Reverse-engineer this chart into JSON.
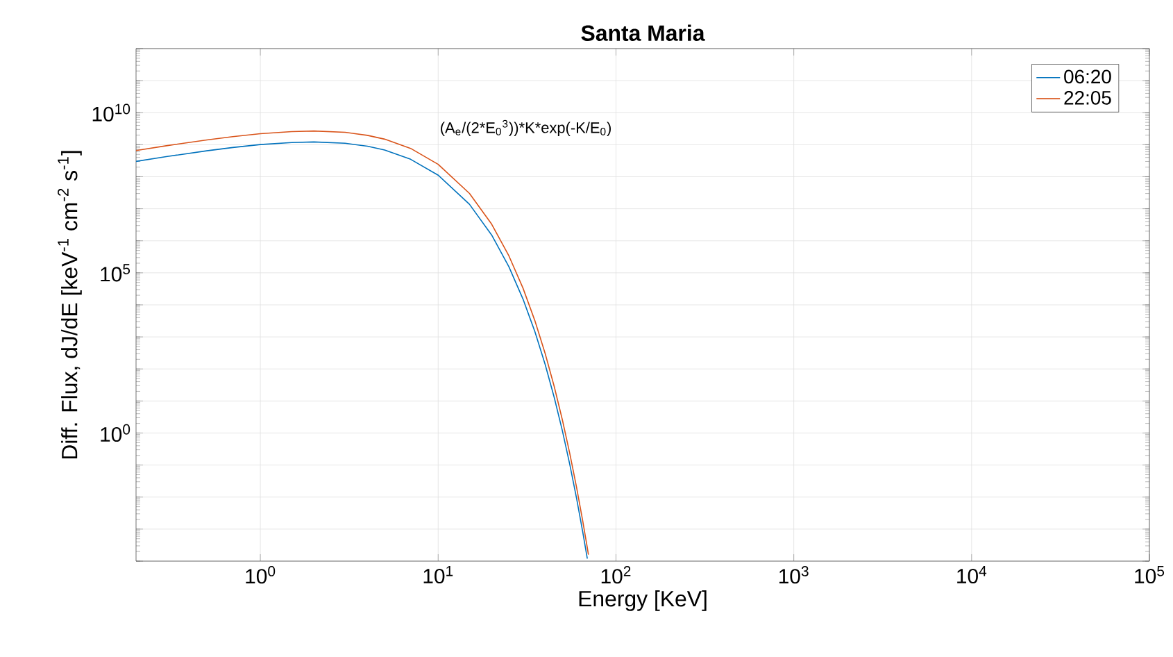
{
  "chart_data": {
    "type": "line",
    "title": "Santa Maria",
    "xlabel": "Energy [KeV]",
    "ylabel": "Diff. Flux, dJ/dE [keV$^{-1}$ cm$^{-2}$ s$^{-1}$]",
    "annotations": [
      "(A$_{e}$/(2*E$_{0}$$^{3}$))*K*exp(-K/E$_{0}$)"
    ],
    "log": "xy",
    "xlim": [
      0.2,
      100000
    ],
    "ylim": [
      0.0001,
      1000000000000
    ],
    "xticks": [
      {
        "value": 1,
        "label": "10$^{0}$"
      },
      {
        "value": 10,
        "label": "10$^{1}$"
      },
      {
        "value": 100,
        "label": "10$^{2}$"
      },
      {
        "value": 1000,
        "label": "10$^{3}$"
      },
      {
        "value": 10000,
        "label": "10$^{4}$"
      },
      {
        "value": 100000,
        "label": "10$^{5}$"
      }
    ],
    "yticks": [
      {
        "value": 0.0001,
        "label": null
      },
      {
        "value": 0.001,
        "label": null
      },
      {
        "value": 0.01,
        "label": null
      },
      {
        "value": 0.1,
        "label": null
      },
      {
        "value": 1,
        "label": "10$^{0}$"
      },
      {
        "value": 10,
        "label": null
      },
      {
        "value": 100,
        "label": null
      },
      {
        "value": 1000,
        "label": null
      },
      {
        "value": 10000,
        "label": null
      },
      {
        "value": 100000,
        "label": "10$^{5}$"
      },
      {
        "value": 1000000,
        "label": null
      },
      {
        "value": 10000000,
        "label": null
      },
      {
        "value": 100000000,
        "label": null
      },
      {
        "value": 1000000000,
        "label": null
      },
      {
        "value": 10000000000,
        "label": "10$^{10}$"
      },
      {
        "value": 100000000000,
        "label": null
      },
      {
        "value": 1000000000000,
        "label": null
      }
    ],
    "grid": true,
    "legend": "top right",
    "marker": "none",
    "line_style": "solid",
    "series": [
      {
        "name": "06:20",
        "color": "#0072bd",
        "x": [
          0.2,
          0.3,
          0.5,
          0.7,
          1,
          1.5,
          2,
          3,
          4,
          5,
          7,
          10,
          15,
          20,
          25,
          30,
          35,
          40,
          45,
          50,
          55,
          60,
          65,
          69
        ],
        "values": [
          301000000.0,
          429000000.0,
          646000000.0,
          818000000.0,
          1010000000.0,
          1170000000.0,
          1220000000.0,
          1110000000.0,
          897000000.0,
          681000000.0,
          351000000.0,
          112000000.0,
          13800000.0,
          1510000.0,
          155000.0,
          15200.0,
          1460.0,
          137,
          12.6,
          1.15,
          0.104,
          0.00931,
          0.000828,
          0.000119
        ]
      },
      {
        "name": "22:05",
        "color": "#d95319",
        "x": [
          0.2,
          0.3,
          0.5,
          0.7,
          1,
          1.5,
          2,
          3,
          4,
          5,
          7,
          10,
          15,
          20,
          25,
          30,
          35,
          40,
          45,
          50,
          55,
          60,
          65,
          69,
          70
        ],
        "values": [
          658000000.0,
          938000000.0,
          1410000000.0,
          1790000000.0,
          2200000000.0,
          2570000000.0,
          2670000000.0,
          2430000000.0,
          1960000000.0,
          1490000000.0,
          767000000.0,
          244000000.0,
          30100000.0,
          3300000.0,
          338000.0,
          33300.0,
          3190.0,
          299,
          27.6,
          2.52,
          0.228,
          0.0204,
          0.00181,
          0.000261,
          0.00016
        ]
      }
    ]
  }
}
